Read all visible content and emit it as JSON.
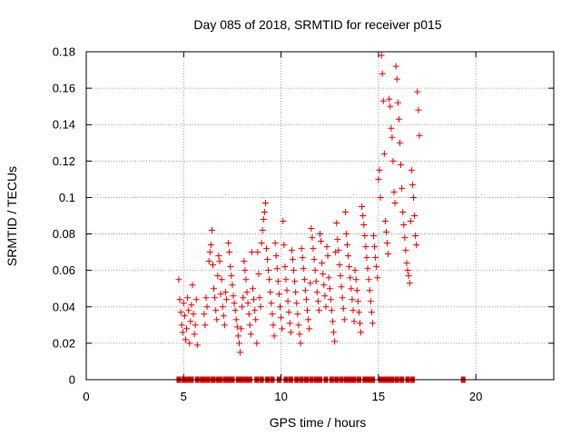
{
  "chart_data": {
    "type": "scatter",
    "title": "Day 085 of 2018, SRMTID for receiver p015",
    "xlabel": "GPS time / hours",
    "ylabel": "SRMTID / TECUs",
    "xlim": [
      0,
      24
    ],
    "ylim": [
      0,
      0.18
    ],
    "x_ticks": [
      0,
      5,
      10,
      15,
      20
    ],
    "x_tick_labels": [
      "0",
      "5",
      "10",
      "15",
      "20"
    ],
    "y_ticks": [
      0,
      0.02,
      0.04,
      0.06,
      0.08,
      0.1,
      0.12,
      0.14,
      0.16,
      0.18
    ],
    "y_tick_labels": [
      "0",
      "0.02",
      "0.04",
      "0.06",
      "0.08",
      "0.1",
      "0.12",
      "0.14",
      "0.16",
      "0.18"
    ],
    "grid": true,
    "marker": "+",
    "color": "#e00000",
    "series": [
      {
        "name": "SRMTID",
        "points": [
          [
            4.75,
            0.055
          ],
          [
            4.8,
            0.044
          ],
          [
            4.85,
            0.037
          ],
          [
            4.9,
            0.03
          ],
          [
            4.95,
            0.026
          ],
          [
            5.0,
            0.042
          ],
          [
            5.05,
            0.035
          ],
          [
            5.1,
            0.022
          ],
          [
            5.15,
            0.028
          ],
          [
            5.2,
            0.045
          ],
          [
            5.25,
            0.038
          ],
          [
            5.3,
            0.02
          ],
          [
            5.35,
            0.032
          ],
          [
            5.4,
            0.041
          ],
          [
            5.45,
            0.052
          ],
          [
            5.5,
            0.036
          ],
          [
            5.55,
            0.025
          ],
          [
            5.6,
            0.03
          ],
          [
            5.65,
            0.044
          ],
          [
            5.7,
            0.019
          ],
          [
            6.05,
            0.036
          ],
          [
            6.1,
            0.03
          ],
          [
            6.15,
            0.045
          ],
          [
            6.2,
            0.04
          ],
          [
            6.3,
            0.065
          ],
          [
            6.35,
            0.07
          ],
          [
            6.4,
            0.074
          ],
          [
            6.45,
            0.082
          ],
          [
            6.5,
            0.063
          ],
          [
            6.55,
            0.05
          ],
          [
            6.6,
            0.045
          ],
          [
            6.65,
            0.038
          ],
          [
            6.7,
            0.033
          ],
          [
            6.75,
            0.057
          ],
          [
            6.8,
            0.068
          ],
          [
            6.85,
            0.065
          ],
          [
            6.9,
            0.047
          ],
          [
            6.95,
            0.055
          ],
          [
            7.0,
            0.04
          ],
          [
            7.05,
            0.035
          ],
          [
            7.1,
            0.03
          ],
          [
            7.15,
            0.048
          ],
          [
            7.2,
            0.044
          ],
          [
            7.3,
            0.075
          ],
          [
            7.35,
            0.07
          ],
          [
            7.4,
            0.062
          ],
          [
            7.45,
            0.057
          ],
          [
            7.5,
            0.052
          ],
          [
            7.55,
            0.046
          ],
          [
            7.6,
            0.042
          ],
          [
            7.65,
            0.038
          ],
          [
            7.7,
            0.033
          ],
          [
            7.75,
            0.029
          ],
          [
            7.8,
            0.024
          ],
          [
            7.85,
            0.02
          ],
          [
            7.9,
            0.015
          ],
          [
            7.95,
            0.028
          ],
          [
            8.0,
            0.04
          ],
          [
            8.05,
            0.045
          ],
          [
            8.1,
            0.065
          ],
          [
            8.15,
            0.06
          ],
          [
            8.2,
            0.055
          ],
          [
            8.25,
            0.048
          ],
          [
            8.3,
            0.042
          ],
          [
            8.35,
            0.036
          ],
          [
            8.4,
            0.03
          ],
          [
            8.45,
            0.025
          ],
          [
            8.5,
            0.07
          ],
          [
            8.55,
            0.05
          ],
          [
            8.6,
            0.044
          ],
          [
            8.65,
            0.038
          ],
          [
            8.7,
            0.033
          ],
          [
            8.75,
            0.02
          ],
          [
            8.8,
            0.07
          ],
          [
            8.85,
            0.058
          ],
          [
            8.9,
            0.045
          ],
          [
            8.95,
            0.04
          ],
          [
            9.0,
            0.075
          ],
          [
            9.05,
            0.082
          ],
          [
            9.1,
            0.088
          ],
          [
            9.15,
            0.092
          ],
          [
            9.2,
            0.097
          ],
          [
            9.25,
            0.072
          ],
          [
            9.3,
            0.066
          ],
          [
            9.35,
            0.06
          ],
          [
            9.4,
            0.055
          ],
          [
            9.45,
            0.048
          ],
          [
            9.5,
            0.042
          ],
          [
            9.55,
            0.036
          ],
          [
            9.6,
            0.03
          ],
          [
            9.65,
            0.024
          ],
          [
            9.7,
            0.075
          ],
          [
            9.75,
            0.068
          ],
          [
            9.8,
            0.061
          ],
          [
            9.85,
            0.054
          ],
          [
            9.9,
            0.047
          ],
          [
            9.95,
            0.04
          ],
          [
            10.0,
            0.034
          ],
          [
            10.05,
            0.028
          ],
          [
            10.1,
            0.087
          ],
          [
            10.15,
            0.074
          ],
          [
            10.2,
            0.062
          ],
          [
            10.25,
            0.055
          ],
          [
            10.3,
            0.049
          ],
          [
            10.35,
            0.043
          ],
          [
            10.4,
            0.037
          ],
          [
            10.45,
            0.031
          ],
          [
            10.5,
            0.026
          ],
          [
            10.55,
            0.071
          ],
          [
            10.6,
            0.066
          ],
          [
            10.65,
            0.06
          ],
          [
            10.7,
            0.054
          ],
          [
            10.75,
            0.048
          ],
          [
            10.8,
            0.042
          ],
          [
            10.85,
            0.036
          ],
          [
            10.9,
            0.03
          ],
          [
            10.95,
            0.025
          ],
          [
            11.0,
            0.02
          ],
          [
            11.05,
            0.072
          ],
          [
            11.1,
            0.067
          ],
          [
            11.15,
            0.061
          ],
          [
            11.2,
            0.055
          ],
          [
            11.25,
            0.049
          ],
          [
            11.3,
            0.044
          ],
          [
            11.35,
            0.038
          ],
          [
            11.4,
            0.033
          ],
          [
            11.45,
            0.028
          ],
          [
            11.5,
            0.053
          ],
          [
            11.55,
            0.083
          ],
          [
            11.6,
            0.078
          ],
          [
            11.65,
            0.072
          ],
          [
            11.7,
            0.066
          ],
          [
            11.75,
            0.06
          ],
          [
            11.8,
            0.054
          ],
          [
            11.85,
            0.048
          ],
          [
            11.9,
            0.043
          ],
          [
            11.95,
            0.038
          ],
          [
            12.0,
            0.08
          ],
          [
            12.05,
            0.076
          ],
          [
            12.1,
            0.064
          ],
          [
            12.15,
            0.058
          ],
          [
            12.2,
            0.052
          ],
          [
            12.25,
            0.046
          ],
          [
            12.3,
            0.04
          ],
          [
            12.35,
            0.073
          ],
          [
            12.4,
            0.068
          ],
          [
            12.45,
            0.056
          ],
          [
            12.5,
            0.05
          ],
          [
            12.55,
            0.044
          ],
          [
            12.6,
            0.038
          ],
          [
            12.65,
            0.032
          ],
          [
            12.7,
            0.026
          ],
          [
            12.75,
            0.021
          ],
          [
            12.8,
            0.07
          ],
          [
            12.85,
            0.086
          ],
          [
            12.9,
            0.077
          ],
          [
            12.95,
            0.071
          ],
          [
            13.0,
            0.063
          ],
          [
            13.05,
            0.057
          ],
          [
            13.1,
            0.051
          ],
          [
            13.15,
            0.045
          ],
          [
            13.2,
            0.039
          ],
          [
            13.25,
            0.033
          ],
          [
            13.3,
            0.092
          ],
          [
            13.35,
            0.08
          ],
          [
            13.4,
            0.074
          ],
          [
            13.45,
            0.068
          ],
          [
            13.5,
            0.062
          ],
          [
            13.55,
            0.056
          ],
          [
            13.6,
            0.05
          ],
          [
            13.65,
            0.044
          ],
          [
            13.7,
            0.038
          ],
          [
            13.75,
            0.032
          ],
          [
            13.8,
            0.06
          ],
          [
            13.85,
            0.055
          ],
          [
            13.9,
            0.049
          ],
          [
            13.95,
            0.043
          ],
          [
            14.0,
            0.037
          ],
          [
            14.05,
            0.031
          ],
          [
            14.1,
            0.026
          ],
          [
            14.15,
            0.095
          ],
          [
            14.2,
            0.09
          ],
          [
            14.25,
            0.085
          ],
          [
            14.3,
            0.079
          ],
          [
            14.35,
            0.073
          ],
          [
            14.4,
            0.067
          ],
          [
            14.45,
            0.061
          ],
          [
            14.5,
            0.055
          ],
          [
            14.55,
            0.049
          ],
          [
            14.6,
            0.043
          ],
          [
            14.65,
            0.037
          ],
          [
            14.7,
            0.031
          ],
          [
            14.75,
            0.079
          ],
          [
            14.8,
            0.073
          ],
          [
            14.85,
            0.067
          ],
          [
            14.9,
            0.062
          ],
          [
            14.95,
            0.056
          ],
          [
            15.0,
            0.11
          ],
          [
            15.05,
            0.115
          ],
          [
            15.1,
            0.1
          ],
          [
            15.15,
            0.178
          ],
          [
            15.2,
            0.168
          ],
          [
            15.25,
            0.153
          ],
          [
            15.3,
            0.124
          ],
          [
            15.35,
            0.087
          ],
          [
            15.4,
            0.081
          ],
          [
            15.45,
            0.075
          ],
          [
            15.5,
            0.069
          ],
          [
            15.55,
            0.154
          ],
          [
            15.6,
            0.15
          ],
          [
            15.65,
            0.138
          ],
          [
            15.7,
            0.133
          ],
          [
            15.75,
            0.12
          ],
          [
            15.8,
            0.103
          ],
          [
            15.85,
            0.097
          ],
          [
            15.9,
            0.172
          ],
          [
            15.95,
            0.165
          ],
          [
            16.0,
            0.152
          ],
          [
            16.05,
            0.143
          ],
          [
            16.1,
            0.13
          ],
          [
            16.15,
            0.118
          ],
          [
            16.2,
            0.105
          ],
          [
            16.25,
            0.092
          ],
          [
            16.3,
            0.085
          ],
          [
            16.35,
            0.078
          ],
          [
            16.4,
            0.071
          ],
          [
            16.45,
            0.064
          ],
          [
            16.5,
            0.06
          ],
          [
            16.55,
            0.057
          ],
          [
            16.6,
            0.053
          ],
          [
            16.65,
            0.087
          ],
          [
            16.7,
            0.115
          ],
          [
            16.75,
            0.107
          ],
          [
            16.8,
            0.1
          ],
          [
            16.85,
            0.09
          ],
          [
            16.9,
            0.079
          ],
          [
            16.95,
            0.074
          ],
          [
            17.0,
            0.158
          ],
          [
            17.05,
            0.148
          ],
          [
            17.1,
            0.134
          ]
        ]
      }
    ],
    "zero_markers_x": [
      4.75,
      5.0,
      5.2,
      5.4,
      5.7,
      5.95,
      6.1,
      6.25,
      6.5,
      6.75,
      6.9,
      7.15,
      7.3,
      7.5,
      7.8,
      8.0,
      8.2,
      8.4,
      8.75,
      9.0,
      9.3,
      9.55,
      9.9,
      10.25,
      10.5,
      10.8,
      11.05,
      11.3,
      11.55,
      11.8,
      12.0,
      12.3,
      12.6,
      12.85,
      13.1,
      13.35,
      13.55,
      13.75,
      14.0,
      14.3,
      14.5,
      14.7,
      15.1,
      15.3,
      15.5,
      15.7,
      15.95,
      16.2,
      16.5,
      16.75,
      19.35
    ]
  }
}
